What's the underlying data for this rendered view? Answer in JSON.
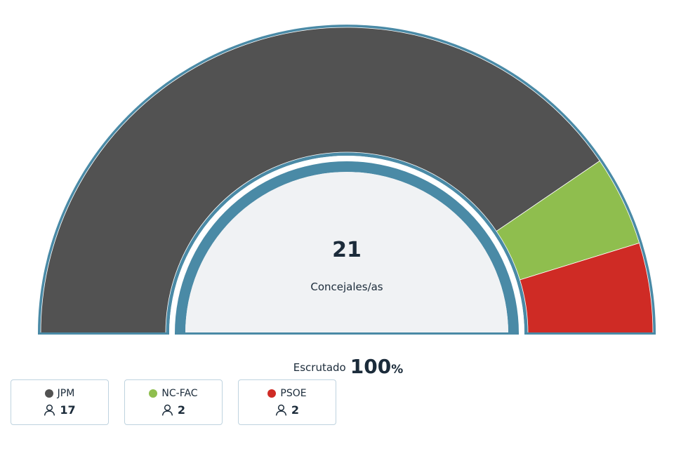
{
  "chart_data": {
    "type": "pie",
    "subtype": "parliament-half-donut",
    "total_seats": "21",
    "center_label": "Concejales/as",
    "series": [
      {
        "name": "JPM",
        "value": 17,
        "color": "#525252"
      },
      {
        "name": "NC-FAC",
        "value": 2,
        "color": "#8fbe4e"
      },
      {
        "name": "PSOE",
        "value": 2,
        "color": "#cf2b25"
      }
    ]
  },
  "scrutiny": {
    "label": "Escrutado",
    "value": "100",
    "unit": "%"
  },
  "legend": [
    {
      "name": "JPM",
      "seats": "17",
      "color": "#525252",
      "icon": "person-icon"
    },
    {
      "name": "NC-FAC",
      "seats": "2",
      "color": "#8fbe4e",
      "icon": "person-icon"
    },
    {
      "name": "PSOE",
      "seats": "2",
      "color": "#cf2b25",
      "icon": "person-icon"
    }
  ],
  "colors": {
    "border": "#4a8aa6",
    "inner_fill": "#f0f2f4",
    "text": "#1b2b3a"
  }
}
